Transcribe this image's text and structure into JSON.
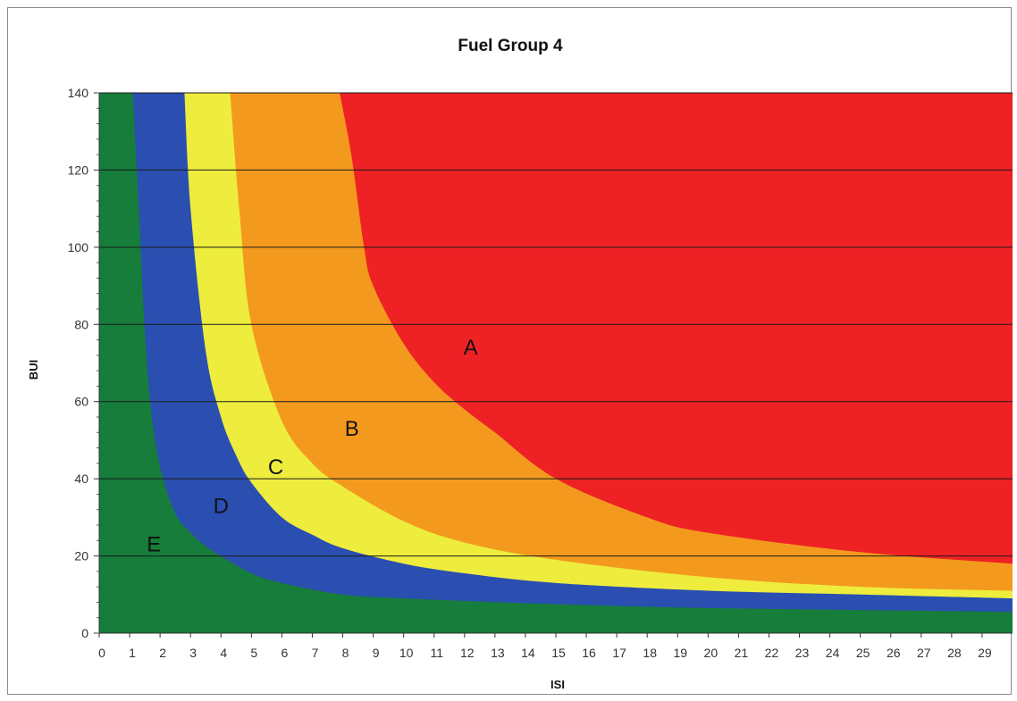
{
  "chart_data": {
    "type": "area",
    "title": "Fuel Group 4",
    "xlabel": "ISI",
    "ylabel": "BUI",
    "xlim": [
      0,
      30
    ],
    "ylim": [
      0,
      140
    ],
    "x_ticks": [
      0,
      1,
      2,
      3,
      4,
      5,
      6,
      7,
      8,
      9,
      10,
      11,
      12,
      13,
      14,
      15,
      16,
      17,
      18,
      19,
      20,
      21,
      22,
      23,
      24,
      25,
      26,
      27,
      28,
      29
    ],
    "y_ticks": [
      0,
      20,
      40,
      60,
      80,
      100,
      120,
      140
    ],
    "grid": "horizontal",
    "regions": [
      {
        "name": "A",
        "color": "#ee2224",
        "label_at": {
          "x": 12.2,
          "y": 74
        }
      },
      {
        "name": "B",
        "color": "#f39a1e",
        "label_at": {
          "x": 8.3,
          "y": 53
        }
      },
      {
        "name": "C",
        "color": "#eeec3d",
        "label_at": {
          "x": 5.8,
          "y": 43
        }
      },
      {
        "name": "D",
        "color": "#2a4fb0",
        "label_at": {
          "x": 4.0,
          "y": 33
        }
      },
      {
        "name": "E",
        "color": "#167d3b",
        "label_at": {
          "x": 1.8,
          "y": 23
        }
      }
    ],
    "boundaries": [
      {
        "between": "E-D",
        "x": [
          1.1,
          1.3,
          1.5,
          1.7,
          2.0,
          2.5,
          3.0,
          3.5,
          4.0,
          5.0,
          6.0,
          8.0,
          10,
          15,
          20,
          25,
          30
        ],
        "y": [
          140,
          110,
          78,
          58,
          43,
          31,
          26,
          22.5,
          20,
          15.5,
          13,
          10,
          9,
          7.5,
          6.5,
          6,
          5.5
        ]
      },
      {
        "between": "D-C",
        "x": [
          2.8,
          3.0,
          3.5,
          4.0,
          4.5,
          5.0,
          6.0,
          7.0,
          8.0,
          10,
          12,
          15,
          20,
          25,
          30
        ],
        "y": [
          140,
          110,
          73,
          56,
          46,
          39,
          30,
          25.5,
          22,
          18,
          15.5,
          13,
          11,
          10,
          9
        ]
      },
      {
        "between": "C-B",
        "x": [
          4.3,
          4.6,
          5.0,
          6.0,
          7.0,
          8.0,
          10,
          12,
          15,
          20,
          25,
          30
        ],
        "y": [
          140,
          110,
          80,
          55,
          44,
          38,
          29,
          23.5,
          19,
          14.5,
          12,
          11
        ]
      },
      {
        "between": "B-A",
        "x": [
          7.9,
          8.3,
          8.7,
          9.0,
          10,
          11,
          12,
          13,
          15,
          18,
          20,
          25,
          30
        ],
        "y": [
          140,
          123,
          100,
          90,
          75,
          65,
          58,
          52,
          40,
          30,
          26,
          21,
          18
        ]
      }
    ]
  }
}
